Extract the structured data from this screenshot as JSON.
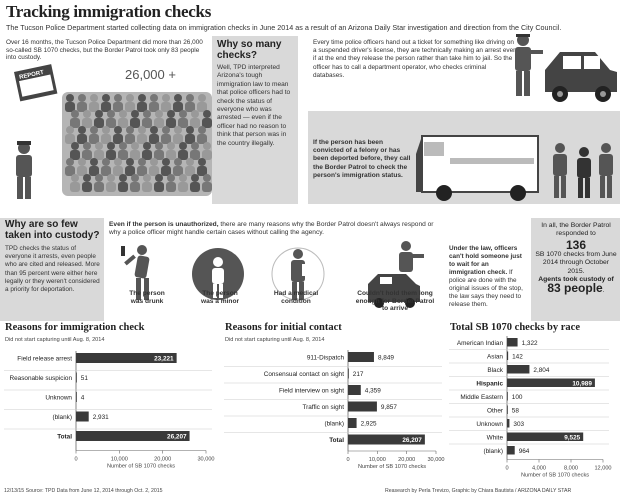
{
  "header": {
    "title": "Tracking immigration checks",
    "intro": "The Tucson Police Department started collecting data on immigration checks in June 2014 as a result of an Arizona Daily Star investigation and direction from the City Council."
  },
  "top_left": {
    "text": "Over 16 months, the Tucson Police Department did more than 26,000 so-called SB 1070 checks, but the Border Patrol took only 83 people into custody.",
    "crowd_count": "26,000 +",
    "sign_label": "REPORT"
  },
  "why_so_many": {
    "heading": "Why so many checks?",
    "body": "Well, TPD interpreted Arizona's tough immigration law to mean that police officers had to check the status of everyone who was arrested — even if the officer had no reason to think that person was in the country illegally."
  },
  "ticket": {
    "body": "Every time police officers hand out a ticket for something like driving on a suspended driver's license, they are technically making an arrest even if at the end they release the person rather than take him to jail. So the officer has to call a department operator, who checks criminal databases."
  },
  "felony": {
    "body": "If the person has been convicted of a felony or has been deported before, they call the Border Patrol to check the person's immigration status."
  },
  "why_so_few": {
    "heading": "Why are so few taken into custody?",
    "body": "TPD checks the status of everyone it arrests, even people who are cited and released. More than 95 percent were either here legally or they weren't considered a priority for deportation.",
    "intro_lead": "Even if the person is unauthorized,",
    "intro_rest": "there are many reasons why the Border Patrol doesn't always respond or why a police officer might handle certain cases without calling the agency.",
    "reasons": [
      {
        "label": "The person was drunk"
      },
      {
        "label": "The person was a minor"
      },
      {
        "label": "Had a medical condition"
      },
      {
        "label": "Couldn't hold them long enough for Border Patrol to arrive"
      }
    ],
    "law_lead": "Under the law, officers can't hold someone just to wait for an immigration check.",
    "law_rest": "If police are done with the original issues of the stop, the law says they need to release them."
  },
  "summary": {
    "line1": "In all, the Border Patrol responded to",
    "num1": "136",
    "line2": "SB 1070 checks from June 2014 through October 2015.",
    "line3": "Agents took custody of",
    "num2": "83 people",
    "period": "."
  },
  "footer": {
    "left": "12/13/15  Source: TPD Data from June 12, 2014 through Oct. 2, 2015",
    "right": "Reasearch by Perla Trevizo, Graphic by Chiara Bautista / ARIZONA DAILY STAR"
  },
  "chart_data": [
    {
      "type": "bar",
      "title": "Reasons for immigration check",
      "subtitle": "Did not start capturing until Aug. 8, 2014",
      "xlabel": "Number of SB 1070 checks",
      "categories": [
        "Field release arrest",
        "Reasonable suspicion",
        "Unknown",
        "(blank)",
        "Total"
      ],
      "values": [
        23221,
        51,
        4,
        2931,
        26207
      ],
      "value_labels": [
        "23,221",
        "51",
        "4",
        "2,931",
        "26,207"
      ],
      "xlim": [
        0,
        30000
      ],
      "ticks": [
        "0",
        "10,000",
        "20,000",
        "30,000"
      ],
      "tick_values": [
        0,
        10000,
        20000,
        30000
      ]
    },
    {
      "type": "bar",
      "title": "Reasons for initial contact",
      "subtitle": "Did not start capturing until Aug. 8, 2014",
      "xlabel": "Number of SB 1070 checks",
      "categories": [
        "911-Dispatch",
        "Consensual contact on sight",
        "Field interview on sight",
        "Traffic on sight",
        "(blank)",
        "Total"
      ],
      "values": [
        8849,
        217,
        4359,
        9857,
        2925,
        26207
      ],
      "value_labels": [
        "8,849",
        "217",
        "4,359",
        "9,857",
        "2,925",
        "26,207"
      ],
      "xlim": [
        0,
        30000
      ],
      "ticks": [
        "0",
        "10,000",
        "20,000",
        "30,000"
      ],
      "tick_values": [
        0,
        10000,
        20000,
        30000
      ]
    },
    {
      "type": "bar",
      "title": "Total SB 1070 checks by race",
      "xlabel": "Number of SB 1070 checks",
      "categories": [
        "American Indian",
        "Asian",
        "Black",
        "Hispanic",
        "Middle Eastern",
        "Other",
        "Unknown",
        "White",
        "(blank)"
      ],
      "values": [
        1322,
        142,
        2804,
        10989,
        100,
        58,
        303,
        9525,
        964
      ],
      "value_labels": [
        "1,322",
        "142",
        "2,804",
        "10,989",
        "100",
        "58",
        "303",
        "9,525",
        "964"
      ],
      "xlim": [
        0,
        12000
      ],
      "ticks": [
        "0",
        "4,000",
        "8,000",
        "12,000"
      ],
      "tick_values": [
        0,
        4000,
        8000,
        12000
      ]
    }
  ]
}
